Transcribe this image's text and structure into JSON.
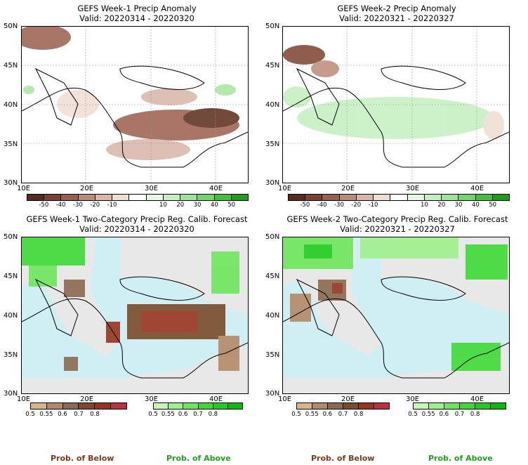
{
  "panels": [
    {
      "title": "GEFS Week-1 Precip Anomaly",
      "valid": "Valid: 20220314 - 20220320"
    },
    {
      "title": "GEFS Week-2 Precip Anomaly",
      "valid": "Valid: 20220321 - 20220327"
    },
    {
      "title": "GEFS Week-1 Two-Category Precip Reg. Calib. Forecast",
      "valid": "Valid: 20220314 - 20220320"
    },
    {
      "title": "GEFS Week-2 Two-Category Precip Reg. Calib. Forecast",
      "valid": "Valid: 20220321 - 20220327"
    }
  ],
  "axes": {
    "lat_labels": [
      "50N",
      "45N",
      "40N",
      "35N",
      "30N"
    ],
    "lon_labels": [
      "10E",
      "20E",
      "30E",
      "40E"
    ]
  },
  "anomaly_colorbar": {
    "ticks": [
      "-50",
      "-40",
      "-30",
      "-20",
      "-10",
      "10",
      "20",
      "30",
      "40",
      "50"
    ],
    "colors": [
      "#5a2b1b",
      "#7b4130",
      "#9a5e4c",
      "#bb8b78",
      "#d8b6a6",
      "#efddd3",
      "#ffffff",
      "#e6f7e3",
      "#c4efbf",
      "#9de596",
      "#6fd768",
      "#3fc238",
      "#1c9e16"
    ]
  },
  "prob_colorbar": {
    "below_ticks": [
      "0.5",
      "0.55",
      "0.6",
      "0.7",
      "0.8"
    ],
    "above_ticks": [
      "0.5",
      "0.55",
      "0.6",
      "0.7",
      "0.8"
    ],
    "below_colors": [
      "#d9b487",
      "#b38a67",
      "#8c6a51",
      "#7a4a2b",
      "#9a3420",
      "#b83240"
    ],
    "above_colors": [
      "#c6f7b5",
      "#9ef08c",
      "#6ee65c",
      "#3fd936",
      "#1fcc1f",
      "#0cb80c"
    ],
    "below_label": "Prob. of Below",
    "above_label": "Prob. of Above",
    "below_label_color": "#7a3a1f",
    "above_label_color": "#1fa01f"
  },
  "map_colors": {
    "sea": "#cfeff4",
    "land_nodata": "#e8e8e8",
    "coast": "#000000"
  }
}
